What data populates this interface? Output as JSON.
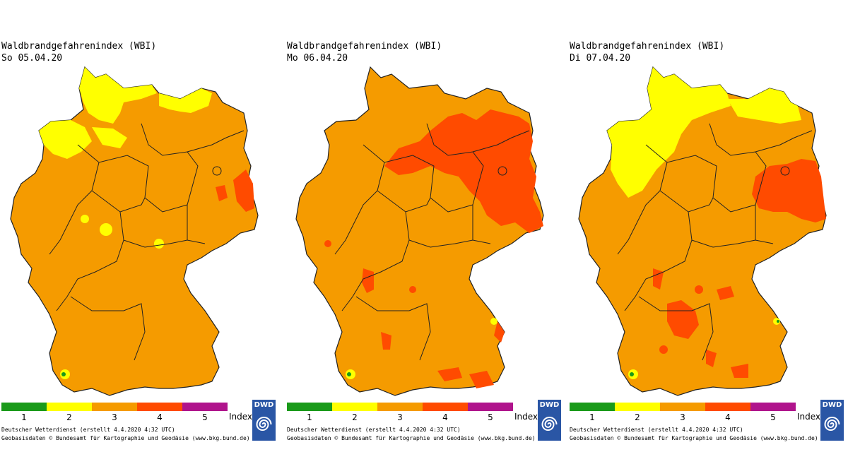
{
  "legend": {
    "levels": [
      {
        "label": "1",
        "color": "#1a9a1a"
      },
      {
        "label": "2",
        "color": "#ffff00"
      },
      {
        "label": "3",
        "color": "#f59b00"
      },
      {
        "label": "4",
        "color": "#ff4b00"
      },
      {
        "label": "5",
        "color": "#b0148c"
      }
    ],
    "index_label": "Index"
  },
  "logo": {
    "text": "DWD",
    "icon": "dwd-swirl-icon"
  },
  "panels": [
    {
      "title": "Waldbrandgefahrenindex (WBI)",
      "date": "So 05.04.20",
      "credit_line1": "Deutscher Wetterdienst (erstellt 4.4.2020 4:32 UTC)",
      "credit_line2": "Geobasisdaten © Bundesamt für Kartographie und Geodäsie (www.bkg.bund.de)",
      "dominant_level": 3
    },
    {
      "title": "Waldbrandgefahrenindex (WBI)",
      "date": "Mo 06.04.20",
      "credit_line1": "Deutscher Wetterdienst (erstellt 4.4.2020 4:32 UTC)",
      "credit_line2": "Geobasisdaten © Bundesamt für Kartographie und Geodäsie (www.bkg.bund.de)",
      "dominant_level": 3
    },
    {
      "title": "Waldbrandgefahrenindex (WBI)",
      "date": "Di 07.04.20",
      "credit_line1": "Deutscher Wetterdienst (erstellt 4.4.2020 4:32 UTC)",
      "credit_line2": "Geobasisdaten © Bundesamt für Kartographie und Geodäsie (www.bkg.bund.de)",
      "dominant_level": 3
    }
  ]
}
